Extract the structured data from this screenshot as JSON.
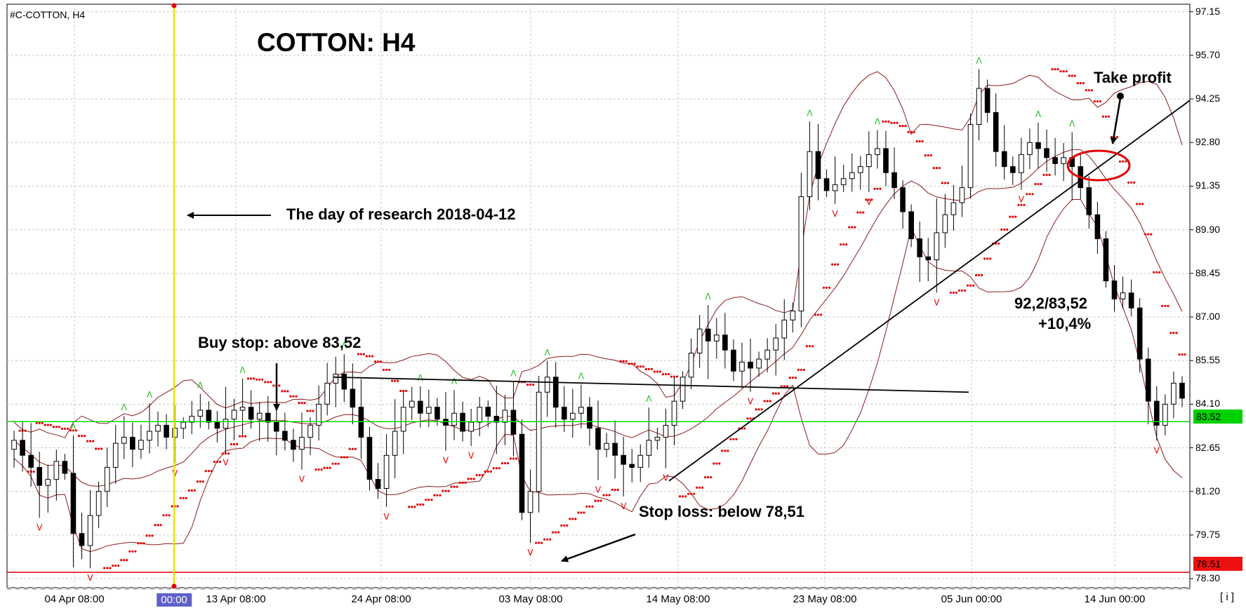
{
  "symbol": "#C-COTTON, H4",
  "title": "COTTON: H4",
  "annotations": {
    "research": "The day of research 2018-04-12",
    "buy_stop": "Buy stop: above 83,52",
    "stop_loss": "Stop loss: below 78,51",
    "take_profit": "Take profit",
    "ratio": "92,2/83,52",
    "gain": "+10,4%"
  },
  "colors": {
    "candle": "#000000",
    "bollinger": "#8b1a1a",
    "sar": "#e00000",
    "fractal_up": "#22bb22",
    "fractal_down": "#e00000",
    "buy_line": "#00e000",
    "stop_line": "#e00000",
    "research_line": "#e6e600"
  },
  "info_button": "[ i ]",
  "chart_data": {
    "type": "candlestick",
    "ylim": [
      78.0,
      97.4
    ],
    "yticks": [
      "97.15",
      "95.70",
      "94.25",
      "92.80",
      "91.35",
      "89.90",
      "88.45",
      "87.00",
      "85.55",
      "84.10",
      "82.65",
      "81.20",
      "79.75",
      "78.30"
    ],
    "xticks": [
      "04 Apr 08:00",
      "00:00",
      "13 Apr 08:00",
      "24 Apr 08:00",
      "03 May 08:00",
      "14 May 08:00",
      "23 May 08:00",
      "05 Jun 00:00",
      "14 Jun 00:00"
    ],
    "levels": {
      "buy_stop": "83.52",
      "stop_loss": "78.51"
    },
    "close": [
      82.9,
      82.4,
      82.0,
      81.4,
      81.6,
      82.2,
      81.8,
      79.8,
      79.4,
      80.4,
      81.2,
      82.0,
      82.8,
      83.0,
      82.6,
      82.9,
      83.2,
      83.4,
      83.0,
      83.3,
      83.5,
      83.7,
      83.9,
      83.5,
      83.3,
      83.6,
      83.9,
      84.0,
      83.6,
      83.8,
      83.5,
      83.2,
      82.9,
      82.6,
      83.0,
      83.4,
      84.1,
      84.8,
      85.1,
      84.6,
      84.0,
      83.0,
      81.6,
      81.3,
      82.4,
      83.2,
      84.0,
      84.2,
      83.8,
      84.0,
      83.6,
      83.4,
      83.8,
      83.2,
      83.5,
      84.0,
      83.7,
      83.5,
      83.9,
      83.1,
      80.5,
      81.2,
      84.5,
      85.0,
      84.0,
      83.6,
      83.8,
      84.0,
      83.3,
      82.6,
      82.8,
      82.4,
      82.1,
      82.0,
      82.4,
      82.9,
      83.0,
      83.4,
      84.2,
      85.0,
      85.8,
      86.6,
      86.2,
      86.4,
      85.9,
      85.2,
      85.5,
      85.3,
      85.6,
      85.9,
      86.3,
      86.9,
      87.2,
      91.0,
      92.5,
      91.6,
      91.2,
      91.4,
      91.6,
      91.8,
      92.0,
      92.4,
      92.6,
      91.8,
      91.3,
      90.5,
      89.6,
      89.0,
      88.9,
      89.8,
      90.4,
      90.8,
      91.3,
      93.4,
      94.6,
      93.8,
      92.5,
      92.0,
      91.8,
      92.4,
      92.8,
      92.6,
      92.3,
      92.1,
      92.3,
      92.0,
      91.3,
      90.4,
      89.6,
      88.2,
      87.6,
      87.8,
      87.3,
      85.6,
      84.2,
      83.4,
      84.1,
      84.8,
      84.3
    ]
  }
}
